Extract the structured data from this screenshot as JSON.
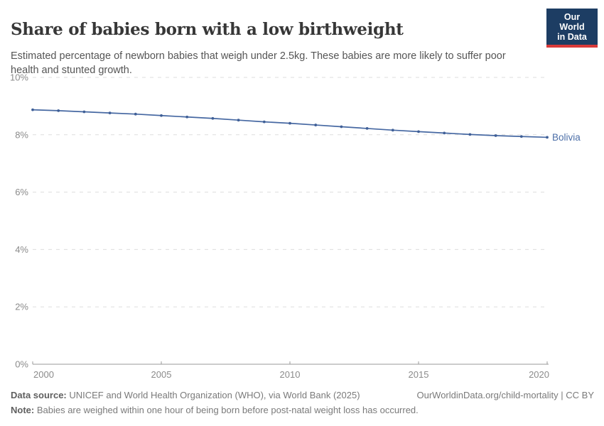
{
  "header": {
    "title": "Share of babies born with a low birthweight",
    "subtitle": "Estimated percentage of newborn babies that weigh under 2.5kg. These babies are more likely to suffer poor health and stunted growth.",
    "logo": {
      "line1": "Our World",
      "line2": "in Data"
    }
  },
  "chart_data": {
    "type": "line",
    "title": "Share of babies born with a low birthweight",
    "xlabel": "",
    "ylabel": "",
    "xlim": [
      2000,
      2020
    ],
    "ylim": [
      0,
      10
    ],
    "yticks": [
      0,
      2,
      4,
      6,
      8,
      10
    ],
    "ytick_suffix": "%",
    "xticks": [
      2000,
      2005,
      2010,
      2015,
      2020
    ],
    "grid": "horizontal-dashed",
    "legend_position": "end-of-line-label",
    "x": [
      2000,
      2001,
      2002,
      2003,
      2004,
      2005,
      2006,
      2007,
      2008,
      2009,
      2010,
      2011,
      2012,
      2013,
      2014,
      2015,
      2016,
      2017,
      2018,
      2019,
      2020
    ],
    "series": [
      {
        "name": "Bolivia",
        "color": "#4668a2",
        "marker_color": "#3f5f97",
        "values": [
          8.87,
          8.84,
          8.8,
          8.76,
          8.72,
          8.67,
          8.62,
          8.57,
          8.51,
          8.45,
          8.4,
          8.34,
          8.28,
          8.22,
          8.16,
          8.11,
          8.06,
          8.01,
          7.97,
          7.94,
          7.91
        ]
      }
    ]
  },
  "footer": {
    "datasource_label": "Data source:",
    "datasource_text": " UNICEF and World Health Organization (WHO), via World Bank (2025)",
    "link": "OurWorldinData.org/child-mortality | CC BY",
    "note_label": "Note:",
    "note_text": " Babies are weighed within one hour of being born before post-natal weight loss has occurred."
  },
  "colors": {
    "series_line": "#4668a2",
    "series_label": "#4c6fa8",
    "logo_bg": "#1d3d63",
    "logo_accent": "#d93a3a",
    "title_text": "#373737",
    "subtitle_text": "#555555",
    "axis_text": "#8b8b8b",
    "gridline": "#dddddd",
    "axis_line": "#999999"
  }
}
